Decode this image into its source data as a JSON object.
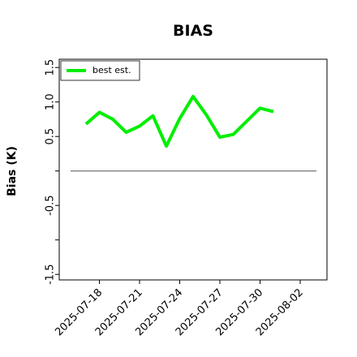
{
  "chart_data": {
    "type": "line",
    "title": "BIAS",
    "y_label": "Bias (K)",
    "x": [
      "2025-07-17",
      "2025-07-18",
      "2025-07-19",
      "2025-07-20",
      "2025-07-21",
      "2025-07-22",
      "2025-07-23",
      "2025-07-24",
      "2025-07-25",
      "2025-07-26",
      "2025-07-27",
      "2025-07-28",
      "2025-07-29",
      "2025-07-30",
      "2025-07-31"
    ],
    "series": [
      {
        "name": "best est.",
        "color": "#00ee00",
        "values": [
          0.68,
          0.85,
          0.75,
          0.56,
          0.65,
          0.8,
          0.36,
          0.76,
          1.08,
          0.81,
          0.49,
          0.53,
          0.72,
          0.91,
          0.86
        ]
      }
    ],
    "xlim": [
      "2025-07-15",
      "2025-08-04"
    ],
    "xticks": [
      "2025-07-18",
      "2025-07-21",
      "2025-07-24",
      "2025-07-27",
      "2025-07-30",
      "2025-08-02"
    ],
    "ylim": [
      -1.58,
      1.62
    ],
    "yticks": [
      {
        "value": -1.5,
        "label": "-1.5"
      },
      {
        "value": -1.0,
        "label": null
      },
      {
        "value": -0.5,
        "label": "-0.5"
      },
      {
        "value": 0.0,
        "label": null
      },
      {
        "value": 0.5,
        "label": "0.5"
      },
      {
        "value": 1.0,
        "label": "1.0"
      },
      {
        "value": 1.5,
        "label": "1.5"
      }
    ],
    "hline": 0,
    "hline_color": "#808080",
    "legend": "upper left",
    "grid": false
  }
}
